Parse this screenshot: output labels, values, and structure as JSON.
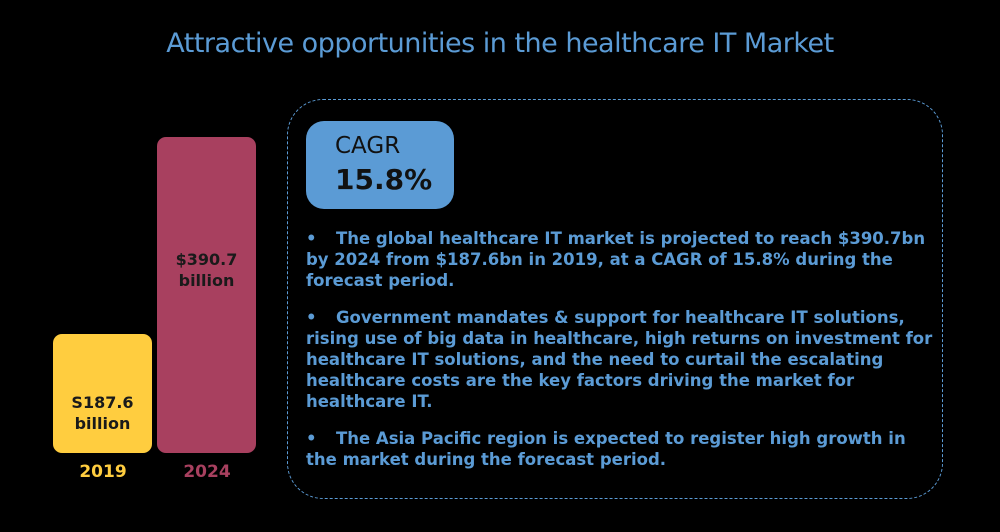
{
  "title": "Attractive opportunities in the healthcare IT Market",
  "chart_data": {
    "type": "bar",
    "categories": [
      "2019",
      "2024"
    ],
    "values": [
      187.6,
      390.7
    ],
    "data_labels": [
      "S187.6 billion",
      "$390.7 billion"
    ],
    "data_label_lines": [
      [
        "S187.6",
        "billion"
      ],
      [
        "$390.7",
        "billion"
      ]
    ],
    "ylim": [
      65,
      400
    ],
    "colors": [
      "#ffcd3f",
      "#a8405f"
    ],
    "grid": false
  },
  "cagr": {
    "label": "CAGR",
    "value": "15.8%"
  },
  "bullets": [
    "The global healthcare IT market is projected to reach $390.7bn by 2024 from $187.6bn in 2019, at a CAGR of 15.8% during the forecast period.",
    "Government mandates & support for healthcare IT solutions, rising use of big data in healthcare, high returns on investment for healthcare IT solutions, and the need to curtail the escalating healthcare costs are the key factors driving the market for healthcare IT.",
    "The Asia Pacific region is expected to register high growth in the market during the forecast period."
  ],
  "bullet_symbol": "•"
}
